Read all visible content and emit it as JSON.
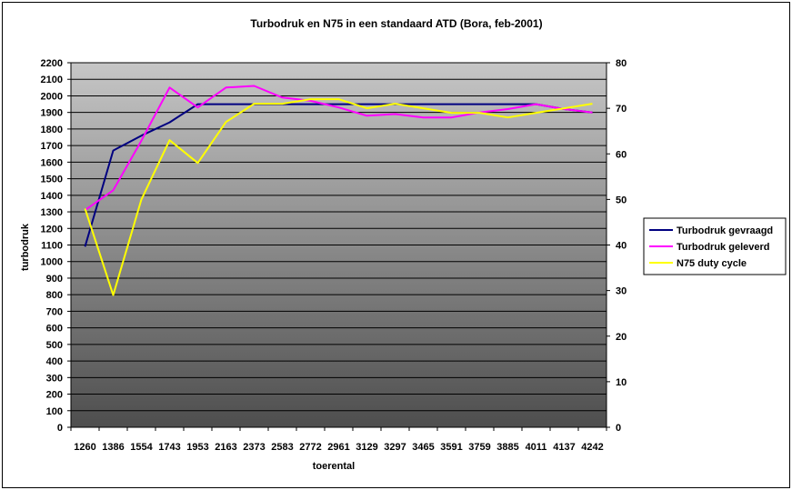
{
  "chart_data": {
    "type": "line",
    "title": "Turbodruk en N75 in een standaard ATD (Bora, feb-2001)",
    "xlabel": "toerental",
    "ylabel": "turbodruk",
    "y2label": "",
    "categories": [
      "1260",
      "1386",
      "1554",
      "1743",
      "1953",
      "2163",
      "2373",
      "2583",
      "2772",
      "2961",
      "3129",
      "3297",
      "3465",
      "3591",
      "3759",
      "3885",
      "4011",
      "4137",
      "4242"
    ],
    "ylim": [
      0,
      2200
    ],
    "yticks": [
      0,
      100,
      200,
      300,
      400,
      500,
      600,
      700,
      800,
      900,
      1000,
      1100,
      1200,
      1300,
      1400,
      1500,
      1600,
      1700,
      1800,
      1900,
      2000,
      2100,
      2200
    ],
    "y2lim": [
      0,
      80
    ],
    "y2ticks": [
      0,
      10,
      20,
      30,
      40,
      50,
      60,
      70,
      80
    ],
    "grid": true,
    "legend_position": "right",
    "series": [
      {
        "name": "Turbodruk gevraagd",
        "axis": "left",
        "color": "#000080",
        "values": [
          1090,
          1670,
          1760,
          1840,
          1950,
          1950,
          1950,
          1950,
          1950,
          1950,
          1950,
          1950,
          1950,
          1950,
          1950,
          1950,
          1950,
          1920,
          1900
        ]
      },
      {
        "name": "Turbodruk geleverd",
        "axis": "left",
        "color": "#ff00ff",
        "values": [
          1310,
          1430,
          1730,
          2050,
          1930,
          2050,
          2060,
          1990,
          1970,
          1930,
          1880,
          1890,
          1870,
          1870,
          1900,
          1920,
          1950,
          1920,
          1900
        ]
      },
      {
        "name": "N75 duty cycle",
        "axis": "right",
        "color": "#ffff00",
        "values": [
          48,
          29,
          50,
          63,
          58,
          67,
          71,
          71,
          72,
          72,
          70,
          71,
          70,
          69,
          69,
          68,
          69,
          70,
          71
        ]
      }
    ]
  }
}
